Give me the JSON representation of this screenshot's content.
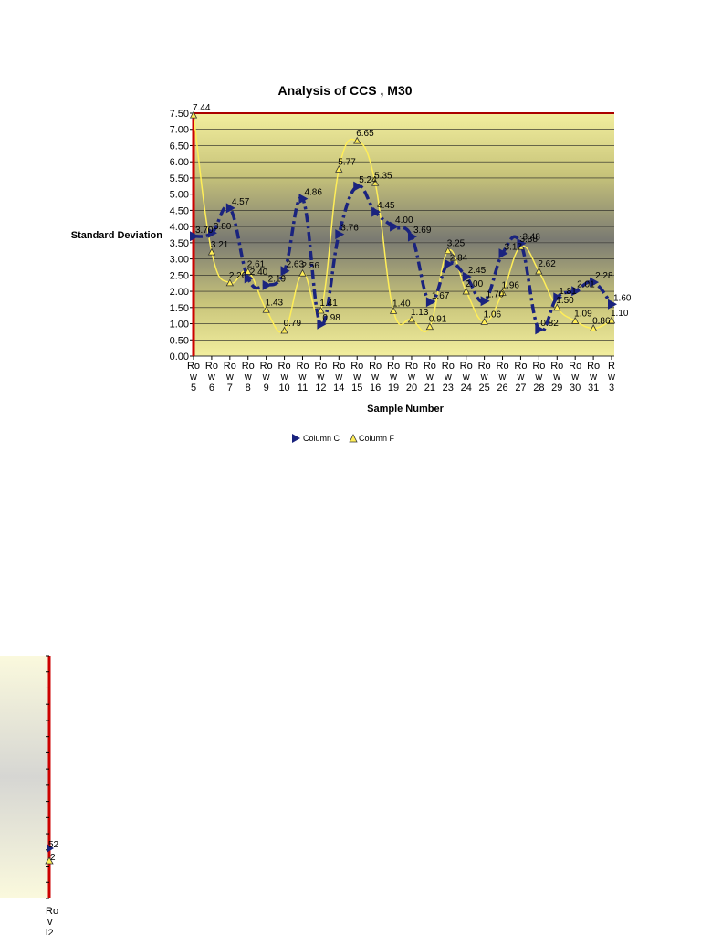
{
  "chart_data": {
    "type": "line",
    "title": "Analysis of CCS   , M30",
    "xlabel": "Sample Number",
    "ylabel": "Standard Deviation",
    "ylim": [
      0,
      7.5
    ],
    "y_ticks": [
      "0.00",
      "0.50",
      "1.00",
      "1.50",
      "2.00",
      "2.50",
      "3.00",
      "3.50",
      "4.00",
      "4.50",
      "5.00",
      "5.50",
      "6.00",
      "6.50",
      "7.00",
      "7.50"
    ],
    "categories": [
      [
        "Ro",
        "w",
        "5"
      ],
      [
        "Ro",
        "w",
        "6"
      ],
      [
        "Ro",
        "w",
        "7"
      ],
      [
        "Ro",
        "w",
        "8"
      ],
      [
        "Ro",
        "w",
        "9"
      ],
      [
        "Ro",
        "w",
        "10"
      ],
      [
        "Ro",
        "w",
        "11"
      ],
      [
        "Ro",
        "w",
        "12"
      ],
      [
        "Ro",
        "w",
        "14"
      ],
      [
        "Ro",
        "w",
        "15"
      ],
      [
        "Ro",
        "w",
        "16"
      ],
      [
        "Ro",
        "w",
        "19"
      ],
      [
        "Ro",
        "w",
        "20"
      ],
      [
        "Ro",
        "w",
        "21"
      ],
      [
        "Ro",
        "w",
        "23"
      ],
      [
        "Ro",
        "w",
        "24"
      ],
      [
        "Ro",
        "w",
        "25"
      ],
      [
        "Ro",
        "w",
        "26"
      ],
      [
        "Ro",
        "w",
        "27"
      ],
      [
        "Ro",
        "w",
        "28"
      ],
      [
        "Ro",
        "w",
        "29"
      ],
      [
        "Ro",
        "w",
        "30"
      ],
      [
        "Ro",
        "w",
        "31"
      ],
      [
        "R",
        "w",
        "3"
      ]
    ],
    "series": [
      {
        "name": "Column C",
        "values": [
          3.7,
          3.8,
          4.57,
          2.4,
          2.19,
          2.63,
          4.86,
          0.98,
          3.76,
          5.24,
          4.45,
          4.0,
          3.69,
          1.67,
          2.84,
          2.45,
          1.7,
          3.17,
          3.48,
          0.82,
          1.81,
          2.01,
          2.28,
          1.6
        ],
        "labels": [
          "3.70",
          "3.80",
          "4.57",
          "2.40",
          "2.19",
          "2.63",
          "4.86",
          "0.98",
          "3.76",
          "5.24",
          "4.45",
          "4.00",
          "3.69",
          "1.67",
          "2.84",
          "2.45",
          "1.70",
          "3.17",
          "3.48",
          "0.82",
          "1.81",
          "2.01",
          "2.28",
          "1.60"
        ],
        "color": "#1a237e"
      },
      {
        "name": "Column F",
        "values": [
          7.44,
          3.21,
          2.26,
          2.61,
          1.43,
          0.79,
          2.56,
          1.41,
          5.77,
          6.65,
          5.35,
          1.4,
          1.13,
          0.91,
          3.25,
          2.0,
          1.06,
          1.96,
          3.38,
          2.62,
          1.5,
          1.09,
          0.86,
          1.1
        ],
        "labels": [
          "7.44",
          "3.21",
          "2.26",
          "2.61",
          "1.43",
          "0.79",
          "2.56",
          "1.41",
          "5.77",
          "6.65",
          "5.35",
          "1.40",
          "1.13",
          "0.91",
          "3.25",
          "2.00",
          "1.06",
          "1.96",
          "3.38",
          "2.62",
          "1.50",
          "1.09",
          "0.86",
          "1.10"
        ],
        "color": "#ffee58"
      }
    ],
    "legend": {
      "placement": "bottom",
      "entries": [
        "Column C",
        "Column F"
      ]
    },
    "grid": true,
    "colors": {
      "plot_top": "#f0ec9a",
      "plot_mid": "#777777",
      "axis": "#cc0000",
      "gridline": "#000000"
    }
  },
  "fragment": {
    "labels": [
      "52",
      "2"
    ],
    "category": [
      "Ro",
      "v",
      "l2"
    ]
  }
}
